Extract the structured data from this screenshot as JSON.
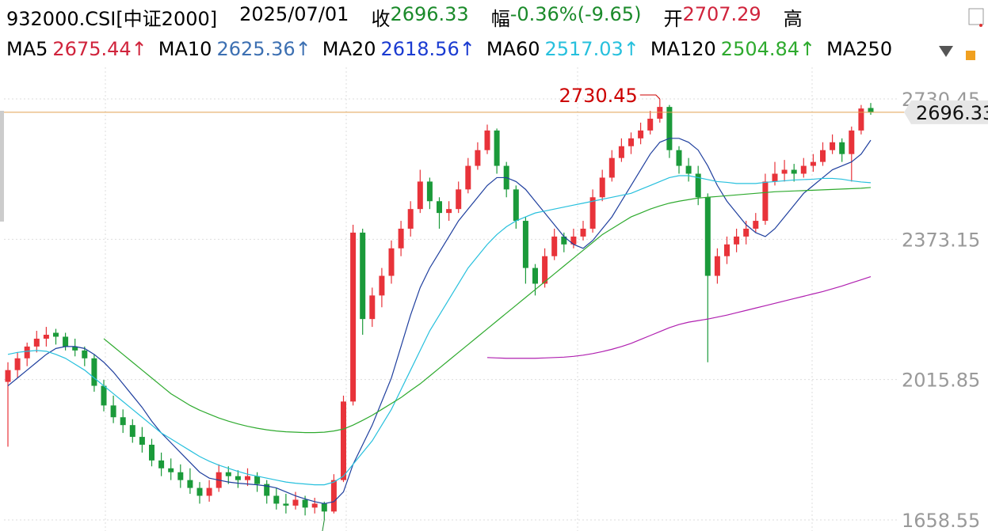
{
  "header": {
    "symbol": "932000.CSI[中证2000]",
    "date": "2025/07/01",
    "close_label": "收",
    "close": "2696.33",
    "change_label": "幅",
    "change": "-0.36%(-9.65)",
    "open_label": "开",
    "open": "2707.29",
    "high_label": "高"
  },
  "ma_legend": [
    {
      "name": "MA5",
      "value": "2675.44↑",
      "color": "#d0243c"
    },
    {
      "name": "MA10",
      "value": "2625.36↑",
      "color": "#3d70b2"
    },
    {
      "name": "MA20",
      "value": "2618.56↑",
      "color": "#1a3bd1"
    },
    {
      "name": "MA60",
      "value": "2517.03↑",
      "color": "#27c0dd"
    },
    {
      "name": "MA120",
      "value": "2504.84↑",
      "color": "#2eaa2e"
    },
    {
      "name": "MA250",
      "value": "",
      "color": "#b020b0"
    }
  ],
  "chart_data": {
    "type": "candlestick",
    "up_color": "#e8333a",
    "down_color": "#1b9a3a",
    "ylim": [
      1630.37,
      2810.97
    ],
    "yticks": [
      1658.55,
      2015.85,
      2373.15,
      2730.45
    ],
    "grid": true,
    "annotations": {
      "max": "2730.45",
      "min": "1658.55"
    },
    "ohlc": [
      [
        2010,
        2060,
        1845,
        2040
      ],
      [
        2040,
        2085,
        2020,
        2070
      ],
      [
        2070,
        2110,
        2050,
        2100
      ],
      [
        2100,
        2140,
        2085,
        2120
      ],
      [
        2120,
        2150,
        2100,
        2130
      ],
      [
        2135,
        2145,
        2105,
        2125
      ],
      [
        2125,
        2135,
        2090,
        2100
      ],
      [
        2100,
        2120,
        2075,
        2090
      ],
      [
        2090,
        2100,
        2050,
        2070
      ],
      [
        2070,
        2080,
        1985,
        2000
      ],
      [
        2000,
        2015,
        1935,
        1950
      ],
      [
        1950,
        1975,
        1905,
        1920
      ],
      [
        1920,
        1940,
        1880,
        1900
      ],
      [
        1900,
        1915,
        1855,
        1870
      ],
      [
        1870,
        1895,
        1830,
        1850
      ],
      [
        1850,
        1865,
        1795,
        1810
      ],
      [
        1810,
        1830,
        1770,
        1790
      ],
      [
        1790,
        1815,
        1760,
        1780
      ],
      [
        1780,
        1800,
        1740,
        1760
      ],
      [
        1760,
        1790,
        1725,
        1740
      ],
      [
        1740,
        1755,
        1700,
        1720
      ],
      [
        1720,
        1760,
        1705,
        1740
      ],
      [
        1740,
        1800,
        1730,
        1780
      ],
      [
        1780,
        1795,
        1750,
        1770
      ],
      [
        1770,
        1785,
        1740,
        1760
      ],
      [
        1760,
        1790,
        1745,
        1770
      ],
      [
        1770,
        1780,
        1730,
        1750
      ],
      [
        1750,
        1760,
        1700,
        1720
      ],
      [
        1720,
        1740,
        1685,
        1700
      ],
      [
        1700,
        1725,
        1675,
        1695
      ],
      [
        1695,
        1730,
        1685,
        1710
      ],
      [
        1710,
        1720,
        1670,
        1690
      ],
      [
        1690,
        1715,
        1675,
        1700
      ],
      [
        1700,
        1705,
        1658.55,
        1680
      ],
      [
        1680,
        1775,
        1675,
        1760
      ],
      [
        1760,
        1975,
        1755,
        1960
      ],
      [
        1960,
        2410,
        1950,
        2390
      ],
      [
        2390,
        2400,
        2130,
        2170
      ],
      [
        2170,
        2250,
        2150,
        2230
      ],
      [
        2230,
        2300,
        2200,
        2280
      ],
      [
        2280,
        2370,
        2260,
        2350
      ],
      [
        2350,
        2420,
        2330,
        2400
      ],
      [
        2400,
        2470,
        2380,
        2450
      ],
      [
        2450,
        2550,
        2440,
        2520
      ],
      [
        2520,
        2530,
        2450,
        2470
      ],
      [
        2470,
        2480,
        2400,
        2440
      ],
      [
        2440,
        2470,
        2420,
        2450
      ],
      [
        2450,
        2520,
        2440,
        2500
      ],
      [
        2500,
        2580,
        2490,
        2560
      ],
      [
        2560,
        2620,
        2550,
        2600
      ],
      [
        2600,
        2665,
        2590,
        2650
      ],
      [
        2650,
        2655,
        2540,
        2560
      ],
      [
        2560,
        2570,
        2480,
        2500
      ],
      [
        2500,
        2510,
        2400,
        2420
      ],
      [
        2420,
        2430,
        2260,
        2300
      ],
      [
        2300,
        2310,
        2230,
        2260
      ],
      [
        2260,
        2350,
        2250,
        2330
      ],
      [
        2330,
        2400,
        2320,
        2380
      ],
      [
        2380,
        2390,
        2340,
        2360
      ],
      [
        2360,
        2400,
        2350,
        2380
      ],
      [
        2380,
        2420,
        2370,
        2400
      ],
      [
        2400,
        2500,
        2390,
        2480
      ],
      [
        2480,
        2550,
        2470,
        2530
      ],
      [
        2530,
        2600,
        2520,
        2580
      ],
      [
        2580,
        2630,
        2570,
        2610
      ],
      [
        2610,
        2645,
        2590,
        2630
      ],
      [
        2630,
        2670,
        2615,
        2650
      ],
      [
        2650,
        2700,
        2640,
        2680
      ],
      [
        2680,
        2730.45,
        2670,
        2710
      ],
      [
        2710,
        2715,
        2580,
        2600
      ],
      [
        2600,
        2610,
        2540,
        2560
      ],
      [
        2560,
        2580,
        2520,
        2540
      ],
      [
        2540,
        2560,
        2460,
        2480
      ],
      [
        2480,
        2490,
        2060,
        2280
      ],
      [
        2280,
        2350,
        2260,
        2330
      ],
      [
        2330,
        2380,
        2310,
        2360
      ],
      [
        2360,
        2400,
        2340,
        2380
      ],
      [
        2380,
        2420,
        2360,
        2400
      ],
      [
        2400,
        2440,
        2390,
        2420
      ],
      [
        2420,
        2540,
        2410,
        2520
      ],
      [
        2520,
        2570,
        2510,
        2540
      ],
      [
        2540,
        2575,
        2520,
        2550
      ],
      [
        2550,
        2565,
        2520,
        2540
      ],
      [
        2540,
        2580,
        2530,
        2560
      ],
      [
        2560,
        2590,
        2545,
        2570
      ],
      [
        2570,
        2620,
        2560,
        2600
      ],
      [
        2600,
        2640,
        2590,
        2620
      ],
      [
        2620,
        2630,
        2570,
        2590
      ],
      [
        2590,
        2660,
        2520,
        2650
      ],
      [
        2650,
        2715,
        2640,
        2705.98
      ],
      [
        2707.29,
        2720,
        2690,
        2696.33
      ]
    ],
    "series": [
      {
        "name": "MA10",
        "color": "#1f3f9e",
        "values": [
          2000,
          2020,
          2040,
          2060,
          2080,
          2095,
          2100,
          2100,
          2095,
          2080,
          2060,
          2035,
          2005,
          1975,
          1945,
          1910,
          1880,
          1855,
          1830,
          1805,
          1780,
          1765,
          1760,
          1755,
          1752,
          1750,
          1748,
          1745,
          1740,
          1730,
          1720,
          1712,
          1705,
          1700,
          1705,
          1730,
          1800,
          1850,
          1900,
          1960,
          2020,
          2100,
          2180,
          2250,
          2300,
          2340,
          2380,
          2420,
          2450,
          2480,
          2510,
          2530,
          2530,
          2520,
          2500,
          2470,
          2440,
          2410,
          2380,
          2360,
          2350,
          2370,
          2400,
          2430,
          2470,
          2510,
          2550,
          2590,
          2620,
          2630,
          2630,
          2620,
          2600,
          2560,
          2510,
          2470,
          2440,
          2410,
          2390,
          2380,
          2400,
          2430,
          2460,
          2490,
          2510,
          2530,
          2550,
          2560,
          2570,
          2590,
          2625.36
        ]
      },
      {
        "name": "MA60",
        "color": "#27c0dd",
        "values": [
          2080,
          2085,
          2088,
          2090,
          2088,
          2080,
          2070,
          2055,
          2040,
          2020,
          2000,
          1980,
          1960,
          1940,
          1920,
          1900,
          1880,
          1865,
          1850,
          1835,
          1820,
          1808,
          1798,
          1790,
          1782,
          1775,
          1770,
          1765,
          1760,
          1755,
          1752,
          1750,
          1748,
          1748,
          1755,
          1770,
          1800,
          1830,
          1860,
          1900,
          1940,
          1990,
          2040,
          2090,
          2140,
          2180,
          2220,
          2260,
          2300,
          2330,
          2360,
          2385,
          2405,
          2420,
          2430,
          2440,
          2445,
          2450,
          2455,
          2460,
          2465,
          2470,
          2475,
          2480,
          2485,
          2490,
          2500,
          2510,
          2520,
          2530,
          2535,
          2535,
          2530,
          2525,
          2520,
          2518,
          2515,
          2515,
          2515,
          2518,
          2520,
          2522,
          2524,
          2525,
          2526,
          2528,
          2528,
          2526,
          2522,
          2519,
          2517.03
        ]
      },
      {
        "name": "MA120",
        "color": "#2eaa2e",
        "values": [
          null,
          null,
          null,
          null,
          null,
          null,
          null,
          null,
          null,
          null,
          2120,
          2100,
          2080,
          2060,
          2040,
          2020,
          2000,
          1980,
          1965,
          1950,
          1938,
          1928,
          1918,
          1910,
          1903,
          1897,
          1892,
          1888,
          1885,
          1883,
          1882,
          1881,
          1881,
          1882,
          1885,
          1890,
          1900,
          1912,
          1925,
          1940,
          1955,
          1970,
          1988,
          2005,
          2025,
          2045,
          2065,
          2085,
          2105,
          2125,
          2145,
          2165,
          2185,
          2205,
          2225,
          2245,
          2265,
          2285,
          2305,
          2325,
          2345,
          2365,
          2385,
          2400,
          2415,
          2430,
          2440,
          2450,
          2458,
          2465,
          2470,
          2474,
          2478,
          2480,
          2482,
          2484,
          2486,
          2488,
          2490,
          2492,
          2494,
          2495,
          2496,
          2497,
          2498,
          2499,
          2500,
          2501,
          2502,
          2503,
          2504.84
        ]
      },
      {
        "name": "MA250",
        "color": "#b020b0",
        "values": [
          null,
          null,
          null,
          null,
          null,
          null,
          null,
          null,
          null,
          null,
          null,
          null,
          null,
          null,
          null,
          null,
          null,
          null,
          null,
          null,
          null,
          null,
          null,
          null,
          null,
          null,
          null,
          null,
          null,
          null,
          null,
          null,
          null,
          null,
          null,
          null,
          null,
          null,
          null,
          null,
          null,
          null,
          null,
          null,
          null,
          null,
          null,
          null,
          null,
          null,
          2072,
          2071,
          2070,
          2070,
          2070,
          2070,
          2071,
          2072,
          2073,
          2075,
          2078,
          2082,
          2087,
          2093,
          2100,
          2108,
          2118,
          2128,
          2138,
          2148,
          2156,
          2162,
          2166,
          2170,
          2175,
          2180,
          2186,
          2192,
          2198,
          2204,
          2210,
          2216,
          2222,
          2228,
          2234,
          2240,
          2247,
          2254,
          2262,
          2270,
          2278
        ]
      }
    ]
  }
}
